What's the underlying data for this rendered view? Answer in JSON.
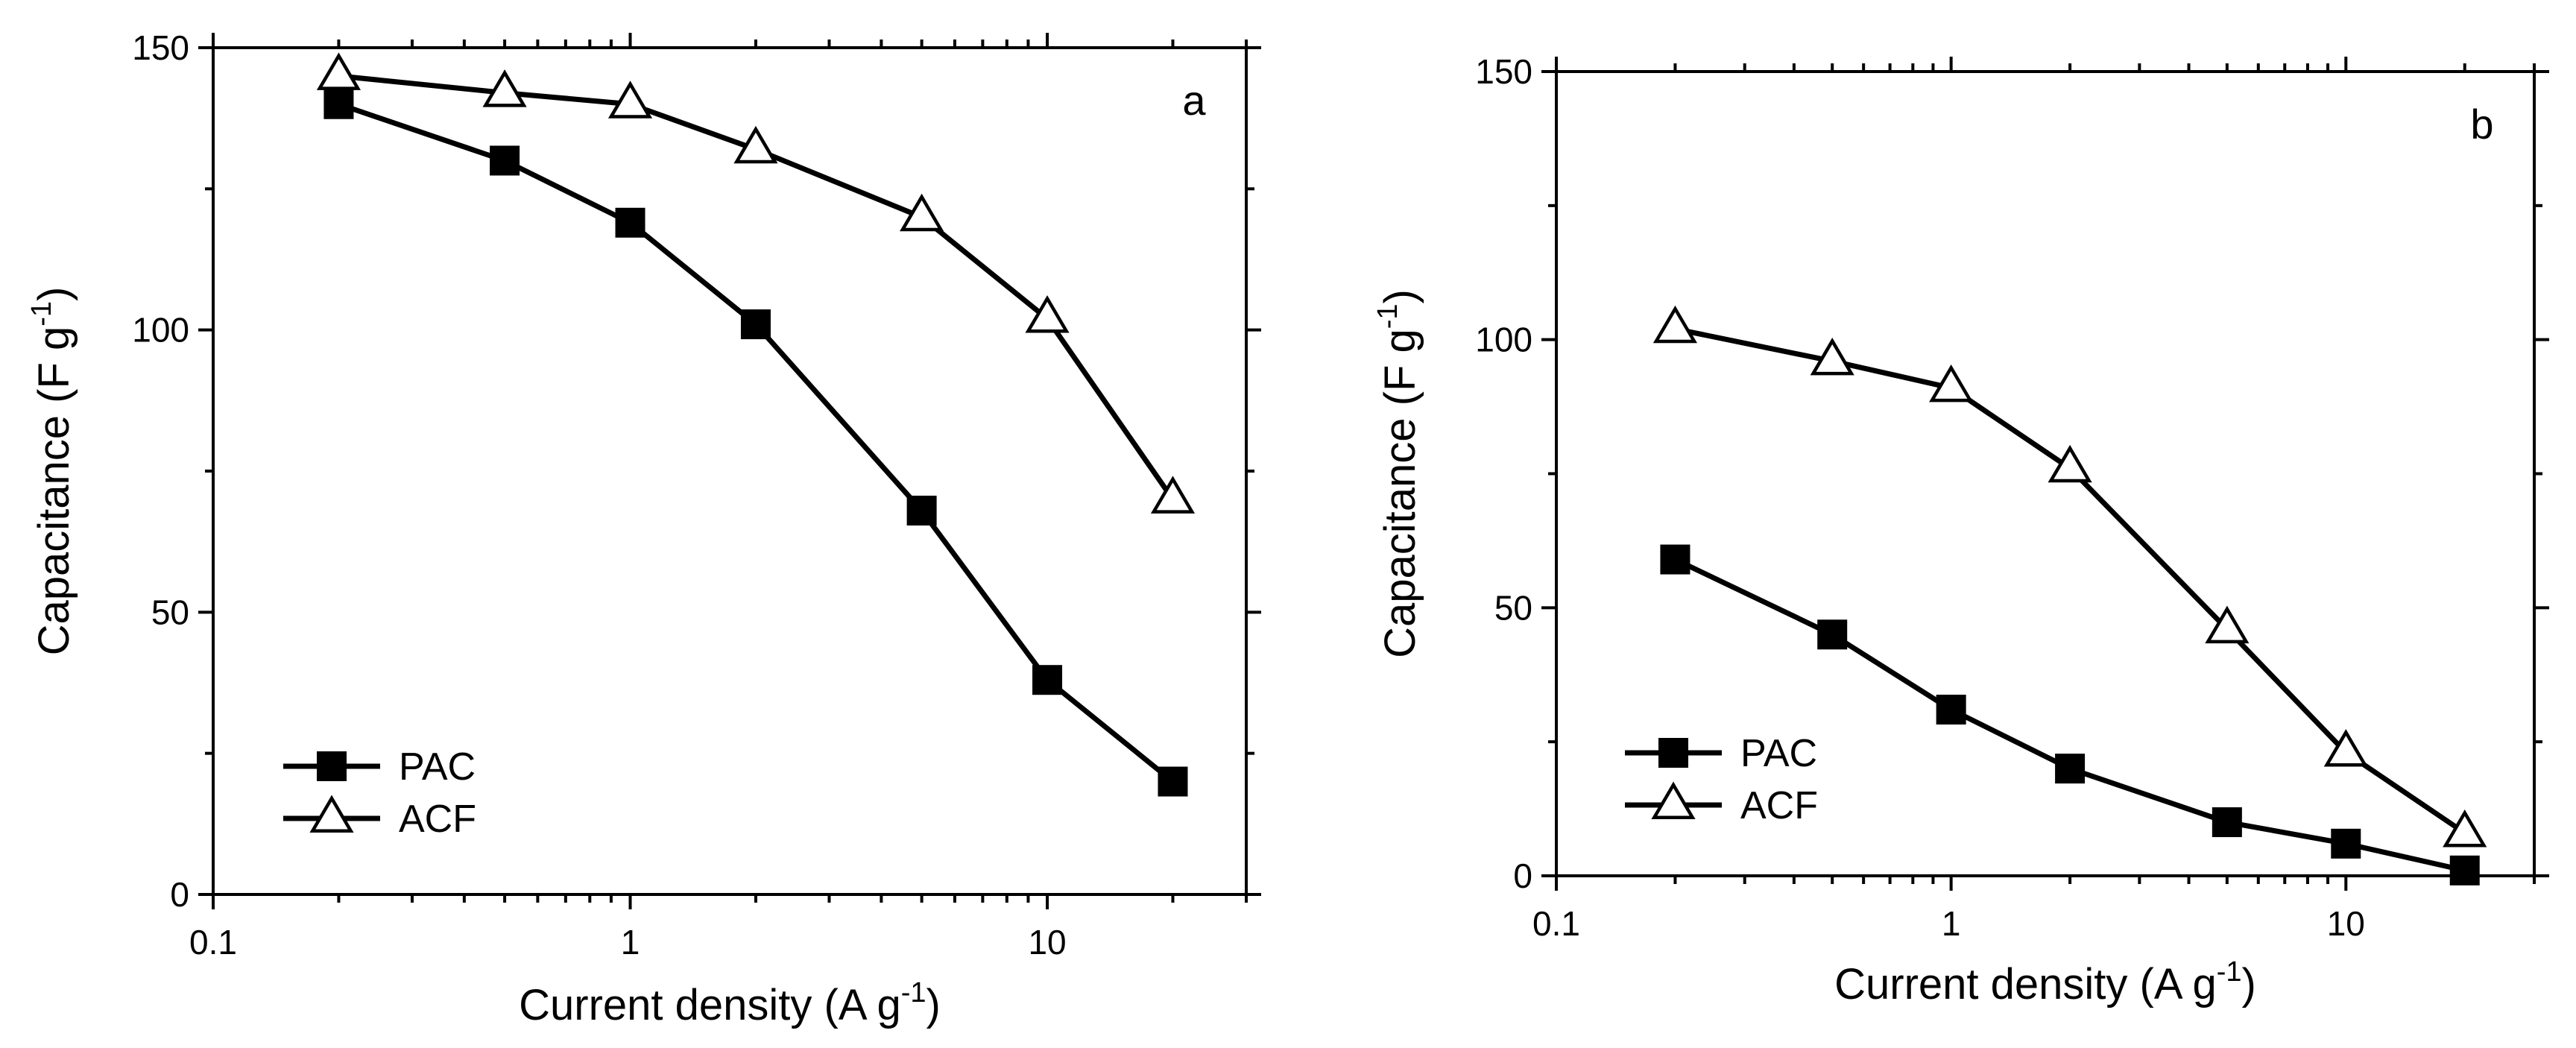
{
  "chart_data": [
    {
      "type": "line",
      "panel_label": "a",
      "xlabel": "Current density (A g",
      "xlabel_sup": "-1",
      "xlabel_close": ")",
      "ylabel": "Capacitance (F g",
      "ylabel_sup": "-1",
      "ylabel_close": ")",
      "xscale": "log",
      "xlim": [
        0.1,
        30
      ],
      "ylim": [
        0,
        150
      ],
      "x_ticks": [
        0.1,
        1,
        10
      ],
      "x_tick_labels": [
        "0.1",
        "1",
        "10"
      ],
      "y_ticks": [
        0,
        50,
        100,
        150
      ],
      "y_tick_labels": [
        "0",
        "50",
        "100",
        "150"
      ],
      "legend_position": "bottom-left",
      "x": [
        0.2,
        0.5,
        1,
        2,
        5,
        10,
        20
      ],
      "series": [
        {
          "name": "PAC",
          "marker": "square",
          "values": [
            140,
            130,
            119,
            101,
            68,
            38,
            20
          ]
        },
        {
          "name": "ACF",
          "marker": "triangle",
          "values": [
            145,
            142,
            140,
            132,
            120,
            102,
            70
          ]
        }
      ]
    },
    {
      "type": "line",
      "panel_label": "b",
      "xlabel": "Current density (A g",
      "xlabel_sup": "-1",
      "xlabel_close": ")",
      "ylabel": "Capacitance (F g",
      "ylabel_sup": "-1",
      "ylabel_close": ")",
      "xscale": "log",
      "xlim": [
        0.1,
        30
      ],
      "ylim": [
        0,
        150
      ],
      "x_ticks": [
        0.1,
        1,
        10
      ],
      "x_tick_labels": [
        "0.1",
        "1",
        "10"
      ],
      "y_ticks": [
        0,
        50,
        100,
        150
      ],
      "y_tick_labels": [
        "0",
        "50",
        "100",
        "150"
      ],
      "legend_position": "bottom-left",
      "x": [
        0.2,
        0.5,
        1,
        2,
        5,
        10,
        20
      ],
      "series": [
        {
          "name": "PAC",
          "marker": "square",
          "values": [
            59,
            45,
            31,
            20,
            10,
            6,
            1
          ]
        },
        {
          "name": "ACF",
          "marker": "triangle",
          "values": [
            102,
            96,
            91,
            76,
            46,
            23,
            8
          ]
        }
      ]
    }
  ]
}
